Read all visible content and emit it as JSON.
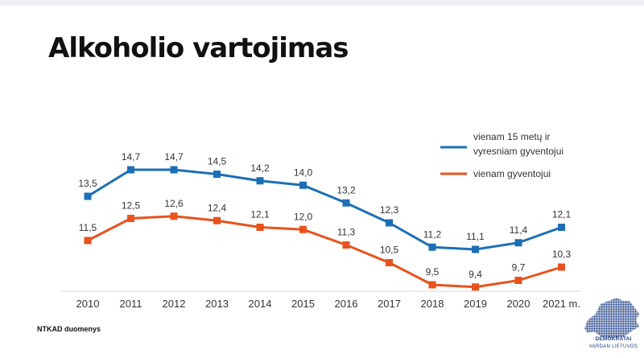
{
  "title": "Alkoholio vartojimas",
  "source": "NTKAD duomenys",
  "logo": {
    "line1": "DEMOKRATAI",
    "line2": "VARDAN LIETUVOS",
    "color": "#1f3f86"
  },
  "chart_data": {
    "type": "line",
    "x": [
      "2010",
      "2011",
      "2012",
      "2013",
      "2014",
      "2015",
      "2016",
      "2017",
      "2018",
      "2019",
      "2020",
      "2021"
    ],
    "x_unit_suffix": "m.",
    "series": [
      {
        "name": "vienam 15 metų ir vyresniam gyventojui",
        "legend_lines": [
          "vienam 15 metų ir",
          "vyresniam gyventojui"
        ],
        "color": "#1c6fb5",
        "values": [
          13.5,
          14.7,
          14.7,
          14.5,
          14.2,
          14.0,
          13.2,
          12.3,
          11.2,
          11.1,
          11.4,
          12.1
        ],
        "labels": [
          "13,5",
          "14,7",
          "14,7",
          "14,5",
          "14,2",
          "14,0",
          "13,2",
          "12,3",
          "11,2",
          "11,1",
          "11,4",
          "12,1"
        ]
      },
      {
        "name": "vienam gyventojui",
        "legend_lines": [
          "vienam gyventojui"
        ],
        "color": "#e8521c",
        "values": [
          11.5,
          12.5,
          12.6,
          12.4,
          12.1,
          12.0,
          11.3,
          10.5,
          9.5,
          9.4,
          9.7,
          10.3
        ],
        "labels": [
          "11,5",
          "12,5",
          "12,6",
          "12,4",
          "12,1",
          "12,0",
          "11,3",
          "10,5",
          "9,5",
          "9,4",
          "9,7",
          "10,3"
        ]
      }
    ],
    "legend_position": "top-right",
    "grid": false
  }
}
